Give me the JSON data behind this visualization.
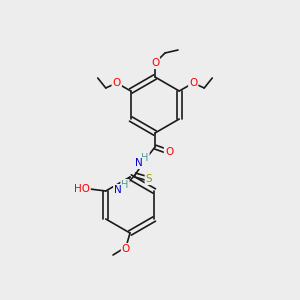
{
  "bg_color": "#ededee",
  "bond_color": "#1a1a1a",
  "atom_colors": {
    "O": "#ff0000",
    "N": "#0000cc",
    "S": "#999900",
    "H": "#4a9a9a",
    "C": "#1a1a1a"
  },
  "font_size": 7.5,
  "bond_width": 1.2
}
